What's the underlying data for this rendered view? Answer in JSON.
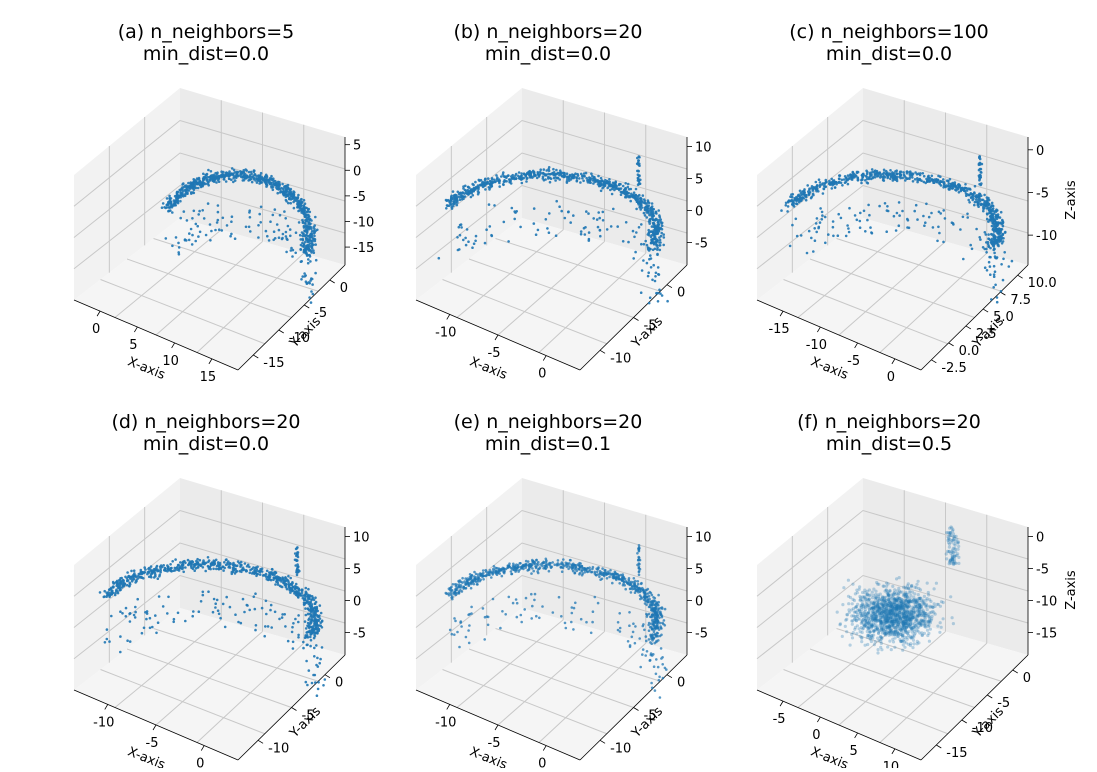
{
  "figure": {
    "description_type": "3D UMAP embeddings grid (2 rows x 3 columns)"
  },
  "chart_data": [
    {
      "type": "scatter",
      "title": [
        "(a) n_neighbors=5",
        "min_dist=0.0"
      ],
      "xlabel": "X-axis",
      "ylabel": "Y-axis",
      "zlabel": "",
      "xticks": [
        "0",
        "5",
        "10",
        "15"
      ],
      "yticks": [
        "0",
        "-5",
        "-10",
        "-15"
      ],
      "zticks": [
        "5",
        "0",
        "-5",
        "-10",
        "-15"
      ],
      "xlim": [
        -3,
        17
      ],
      "ylim": [
        -16,
        3
      ],
      "zlim": [
        -17,
        6
      ],
      "point_color": "#1f77b4",
      "marker_alpha": 0.9
    },
    {
      "type": "scatter",
      "title": [
        "(b) n_neighbors=20",
        "min_dist=0.0"
      ],
      "xlabel": "X-axis",
      "ylabel": "Y-axis",
      "zlabel": "",
      "xticks": [
        "-10",
        "-5",
        "0"
      ],
      "yticks": [
        "0",
        "-5",
        "-10"
      ],
      "zticks": [
        "10",
        "5",
        "0",
        "-5"
      ],
      "xlim": [
        -14,
        3
      ],
      "ylim": [
        -12,
        3
      ],
      "zlim": [
        -6,
        14
      ],
      "point_color": "#1f77b4",
      "marker_alpha": 0.9
    },
    {
      "type": "scatter",
      "title": [
        "(c) n_neighbors=100",
        "min_dist=0.0"
      ],
      "xlabel": "X-axis",
      "ylabel": "Y-axis",
      "zlabel": "Z-axis",
      "xticks": [
        "-15",
        "-10",
        "-5",
        "0"
      ],
      "yticks": [
        "10.0",
        "7.5",
        "5.0",
        "2.5",
        "0.0",
        "-2.5"
      ],
      "zticks": [
        "0",
        "-5",
        "-10"
      ],
      "xlim": [
        -16,
        3
      ],
      "ylim": [
        -3,
        11
      ],
      "zlim": [
        -14,
        4
      ],
      "point_color": "#1f77b4",
      "marker_alpha": 0.9
    },
    {
      "type": "scatter",
      "title": [
        "(d) n_neighbors=20",
        "min_dist=0.0"
      ],
      "xlabel": "X-axis",
      "ylabel": "Y-axis",
      "zlabel": "",
      "xticks": [
        "-10",
        "-5",
        "0"
      ],
      "yticks": [
        "0",
        "-5",
        "-10"
      ],
      "zticks": [
        "10",
        "5",
        "0",
        "-5"
      ],
      "xlim": [
        -14,
        3
      ],
      "ylim": [
        -12,
        3
      ],
      "zlim": [
        -6,
        14
      ],
      "point_color": "#1f77b4",
      "marker_alpha": 0.9
    },
    {
      "type": "scatter",
      "title": [
        "(e) n_neighbors=20",
        "min_dist=0.1"
      ],
      "xlabel": "X-axis",
      "ylabel": "Y-axis",
      "zlabel": "",
      "xticks": [
        "-10",
        "-5",
        "0"
      ],
      "yticks": [
        "0",
        "-5",
        "-10"
      ],
      "zticks": [
        "10",
        "5",
        "0",
        "-5"
      ],
      "xlim": [
        -14,
        3
      ],
      "ylim": [
        -12,
        3
      ],
      "zlim": [
        -6,
        14
      ],
      "point_color": "#1f77b4",
      "marker_alpha": 0.75
    },
    {
      "type": "scatter",
      "title": [
        "(f) n_neighbors=20",
        "min_dist=0.5"
      ],
      "xlabel": "X-axis",
      "ylabel": "Y-axis",
      "zlabel": "Z-axis",
      "xticks": [
        "-5",
        "0",
        "5",
        "10"
      ],
      "yticks": [
        "0",
        "-5",
        "-10",
        "-15"
      ],
      "zticks": [
        "0",
        "-5",
        "-10",
        "-15"
      ],
      "xlim": [
        -7,
        14
      ],
      "ylim": [
        -17,
        3
      ],
      "zlim": [
        -18,
        4
      ],
      "point_color": "#1f77b4",
      "marker_alpha": 0.3
    }
  ]
}
